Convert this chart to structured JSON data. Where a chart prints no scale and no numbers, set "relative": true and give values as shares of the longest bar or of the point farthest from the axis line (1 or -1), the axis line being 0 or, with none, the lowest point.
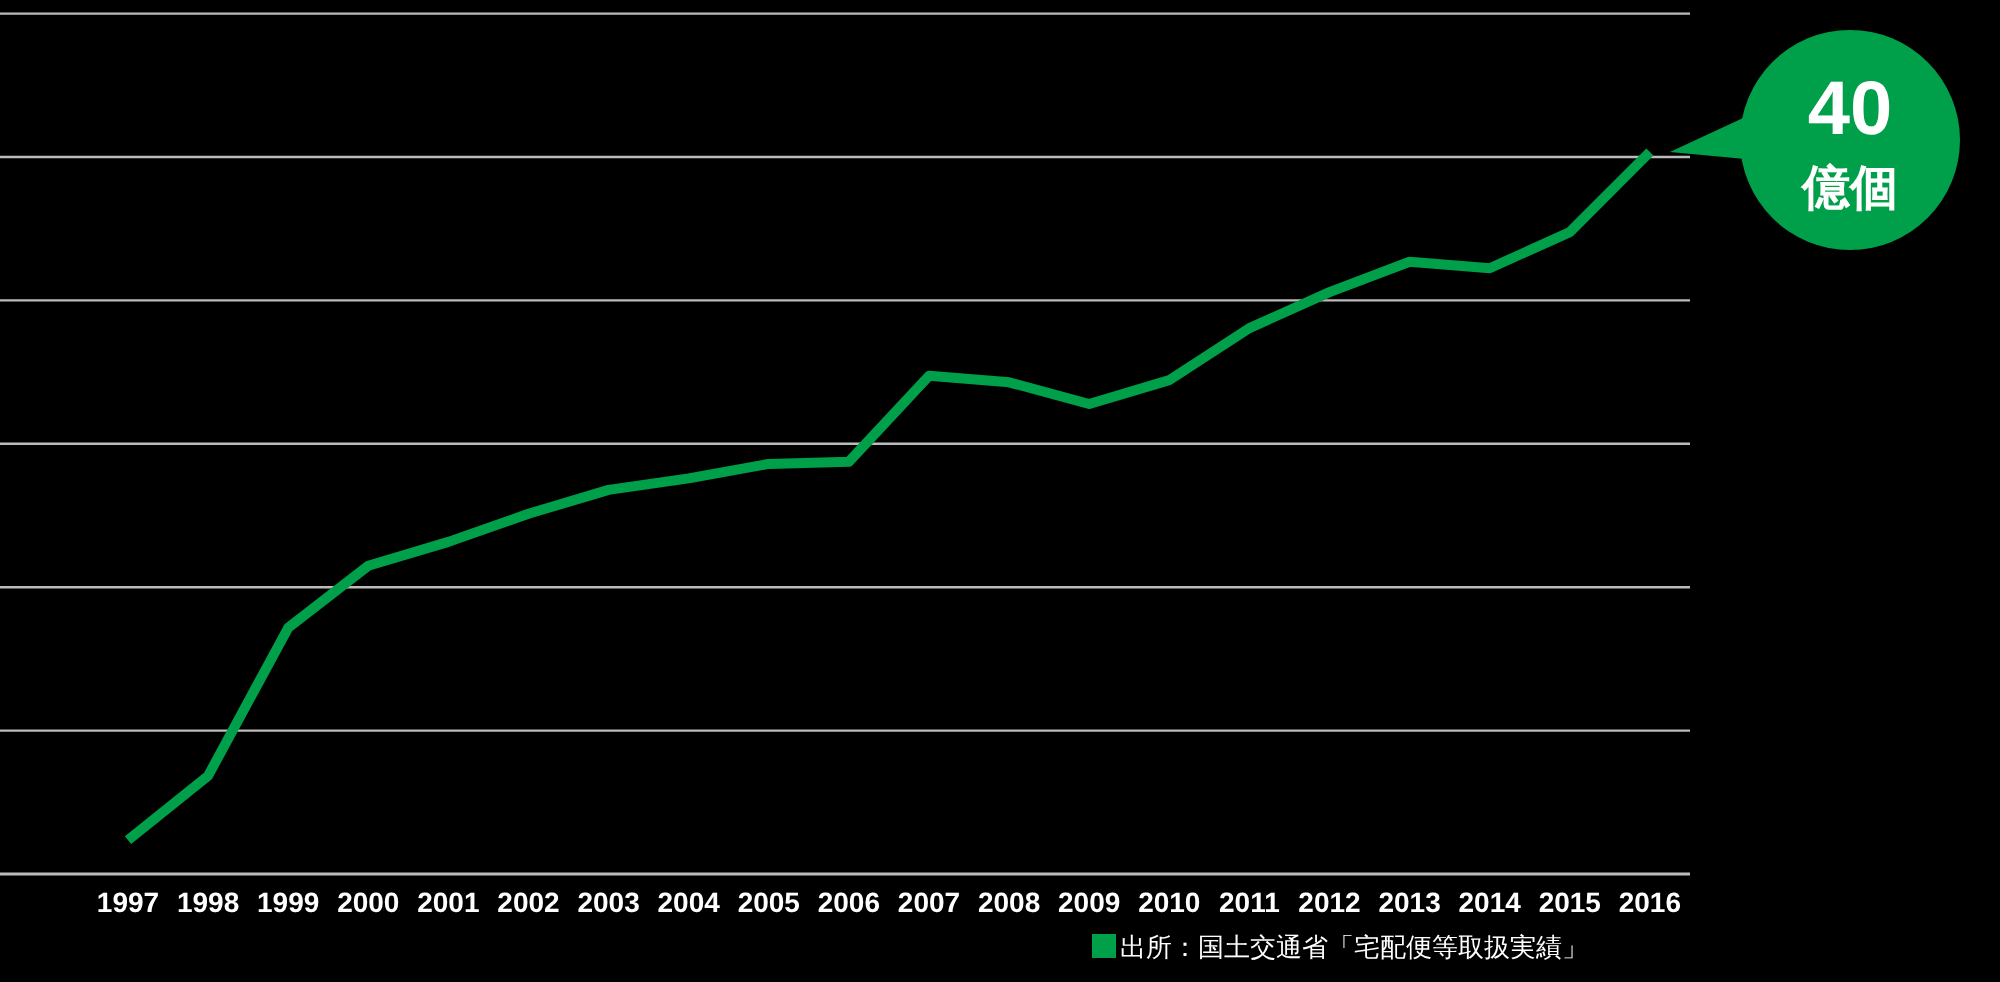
{
  "chart_data": {
    "type": "line",
    "relative": true,
    "grid": true,
    "categories": [
      "1997",
      "1998",
      "1999",
      "2000",
      "2001",
      "2002",
      "2003",
      "2004",
      "2005",
      "2006",
      "2007",
      "2008",
      "2009",
      "2010",
      "2011",
      "2012",
      "2013",
      "2014",
      "2015",
      "2016"
    ],
    "series": [
      {
        "color": "#00a04a",
        "values": [
          0.047,
          0.136,
          0.341,
          0.427,
          0.46,
          0.499,
          0.532,
          0.548,
          0.568,
          0.571,
          0.69,
          0.681,
          0.651,
          0.684,
          0.756,
          0.806,
          0.848,
          0.839,
          0.889,
          1
        ]
      }
    ],
    "annotations": [
      {
        "text": "40 億個",
        "x": "2016",
        "y": 1
      },
      "出所：国土交通省「宅配便等取扱実績」"
    ]
  }
}
